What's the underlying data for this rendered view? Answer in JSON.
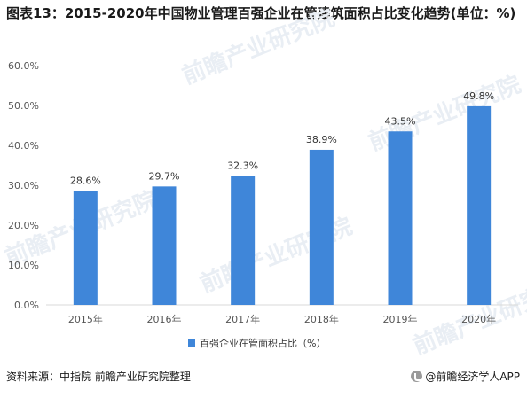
{
  "title": "图表13：2015-2020年中国物业管理百强企业在管建筑面积占比变化趋势(单位：%)",
  "source": "资料来源：中指院 前瞻产业研究院整理",
  "brand": "@前瞻经济学人APP",
  "watermark": "前瞻产业研究院",
  "colors": {
    "bar": "#3f86d9",
    "grid": "#d9d9d9",
    "axis": "#555555"
  },
  "chart_data": {
    "type": "bar",
    "categories": [
      "2015年",
      "2016年",
      "2017年",
      "2018年",
      "2019年",
      "2020年"
    ],
    "series": [
      {
        "name": "百强企业在管面积占比（%）",
        "values": [
          28.6,
          29.7,
          32.3,
          38.9,
          43.5,
          49.8
        ]
      }
    ],
    "data_labels": [
      "28.6%",
      "29.7%",
      "32.3%",
      "38.9%",
      "43.5%",
      "49.8%"
    ],
    "ylim": [
      0,
      60
    ],
    "yticks": [
      "0.0%",
      "10.0%",
      "20.0%",
      "30.0%",
      "40.0%",
      "50.0%",
      "60.0%"
    ],
    "grid": false,
    "legend_position": "bottom"
  }
}
